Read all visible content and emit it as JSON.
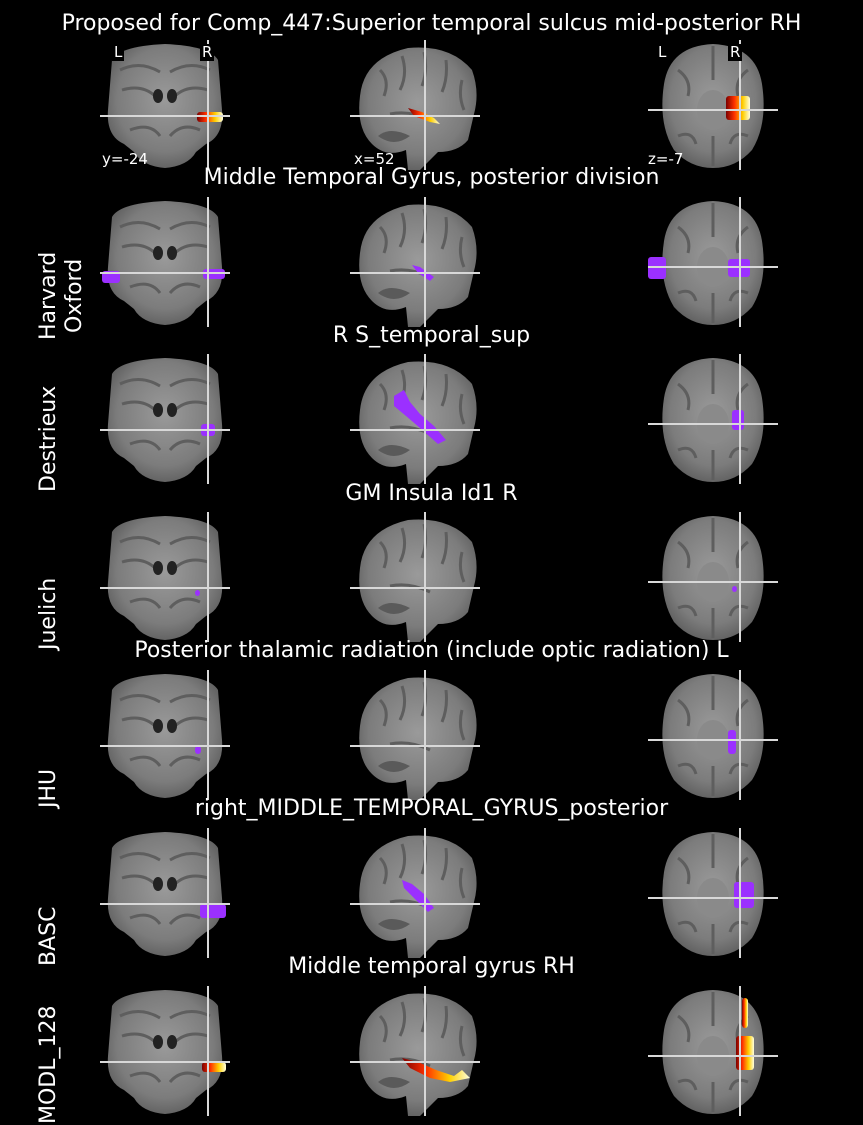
{
  "figure": {
    "main_title": "Proposed for Comp_447:Superior temporal sulcus mid-posterior RH",
    "coords": {
      "y": "y=-24",
      "x": "x=52",
      "z": "z=-7"
    },
    "orientation": {
      "left": "L",
      "right": "R"
    },
    "colors": {
      "background": "#000000",
      "atlas_overlay": "#9b30ff",
      "crosshair": "#d8d8d8"
    },
    "rows": [
      {
        "label": "",
        "title": ""
      },
      {
        "label": "Harvard\nOxford",
        "title": "Middle Temporal Gyrus, posterior division"
      },
      {
        "label": "Destrieux",
        "title": "R S_temporal_sup"
      },
      {
        "label": "Juelich",
        "title": "GM Insula Id1 R"
      },
      {
        "label": "JHU",
        "title": "Posterior thalamic radiation (include optic radiation) L"
      },
      {
        "label": "BASC",
        "title": "right_MIDDLE_TEMPORAL_GYRUS_posterior"
      },
      {
        "label": "MODL_128",
        "title": "Middle temporal gyrus RH"
      }
    ]
  }
}
